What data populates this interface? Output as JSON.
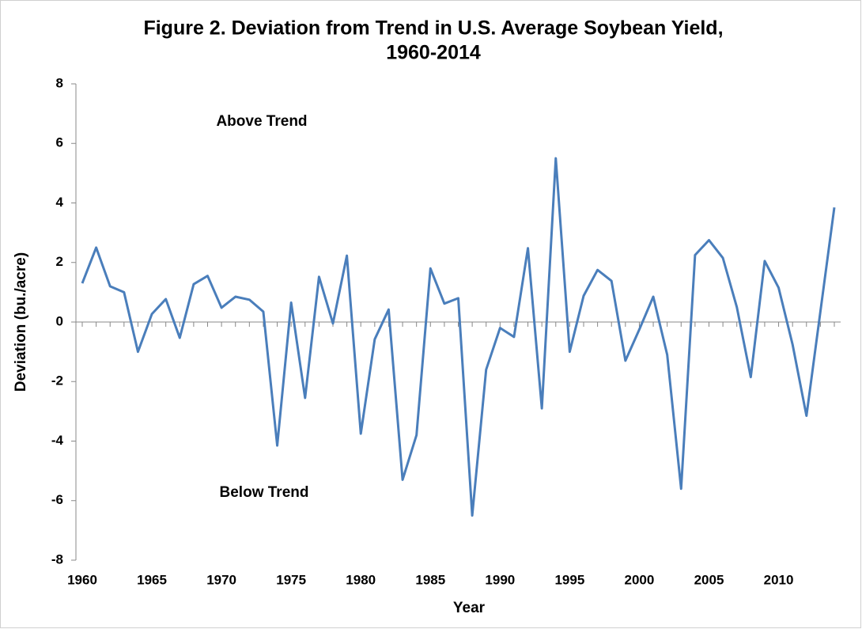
{
  "chart_data": {
    "type": "line",
    "title": [
      "Figure 2. Deviation from Trend in U.S. Average Soybean Yield,",
      "1960-2014"
    ],
    "x_label": "Year",
    "y_label": "Deviation (bu./acre)",
    "annotations": [
      "Above Trend",
      "Below Trend"
    ],
    "x": [
      1960,
      1961,
      1962,
      1963,
      1964,
      1965,
      1966,
      1967,
      1968,
      1969,
      1970,
      1971,
      1972,
      1973,
      1974,
      1975,
      1976,
      1977,
      1978,
      1979,
      1980,
      1981,
      1982,
      1983,
      1984,
      1985,
      1986,
      1987,
      1988,
      1989,
      1990,
      1991,
      1992,
      1993,
      1994,
      1995,
      1996,
      1997,
      1998,
      1999,
      2000,
      2001,
      2002,
      2003,
      2004,
      2005,
      2006,
      2007,
      2008,
      2009,
      2010,
      2011,
      2012,
      2013,
      2014
    ],
    "series": [
      {
        "color": "#4a7ebb",
        "values": [
          1.3,
          2.5,
          1.2,
          1.0,
          -1.0,
          0.27,
          0.77,
          -0.53,
          1.27,
          1.55,
          0.48,
          0.85,
          0.75,
          0.35,
          -4.15,
          0.65,
          -2.55,
          1.52,
          -0.05,
          2.23,
          -3.75,
          -0.58,
          0.42,
          -5.3,
          -3.8,
          1.8,
          0.62,
          0.8,
          -6.5,
          -1.6,
          -0.2,
          -0.5,
          2.48,
          -2.9,
          5.5,
          -1.0,
          0.88,
          1.75,
          1.38,
          -1.3,
          -0.25,
          0.85,
          -1.1,
          -5.6,
          2.25,
          2.75,
          2.15,
          0.5,
          -1.85,
          2.05,
          1.15,
          -0.75,
          -3.15,
          0.35,
          3.85
        ]
      }
    ],
    "xlim": [
      1960,
      2014
    ],
    "xticks": [
      1960,
      1965,
      1970,
      1975,
      1980,
      1985,
      1990,
      1995,
      2000,
      2005,
      2010
    ],
    "ylim": [
      -8,
      8
    ],
    "yticks": [
      -8,
      -6,
      -4,
      -2,
      0,
      2,
      4,
      6,
      8
    ],
    "grid": false
  }
}
